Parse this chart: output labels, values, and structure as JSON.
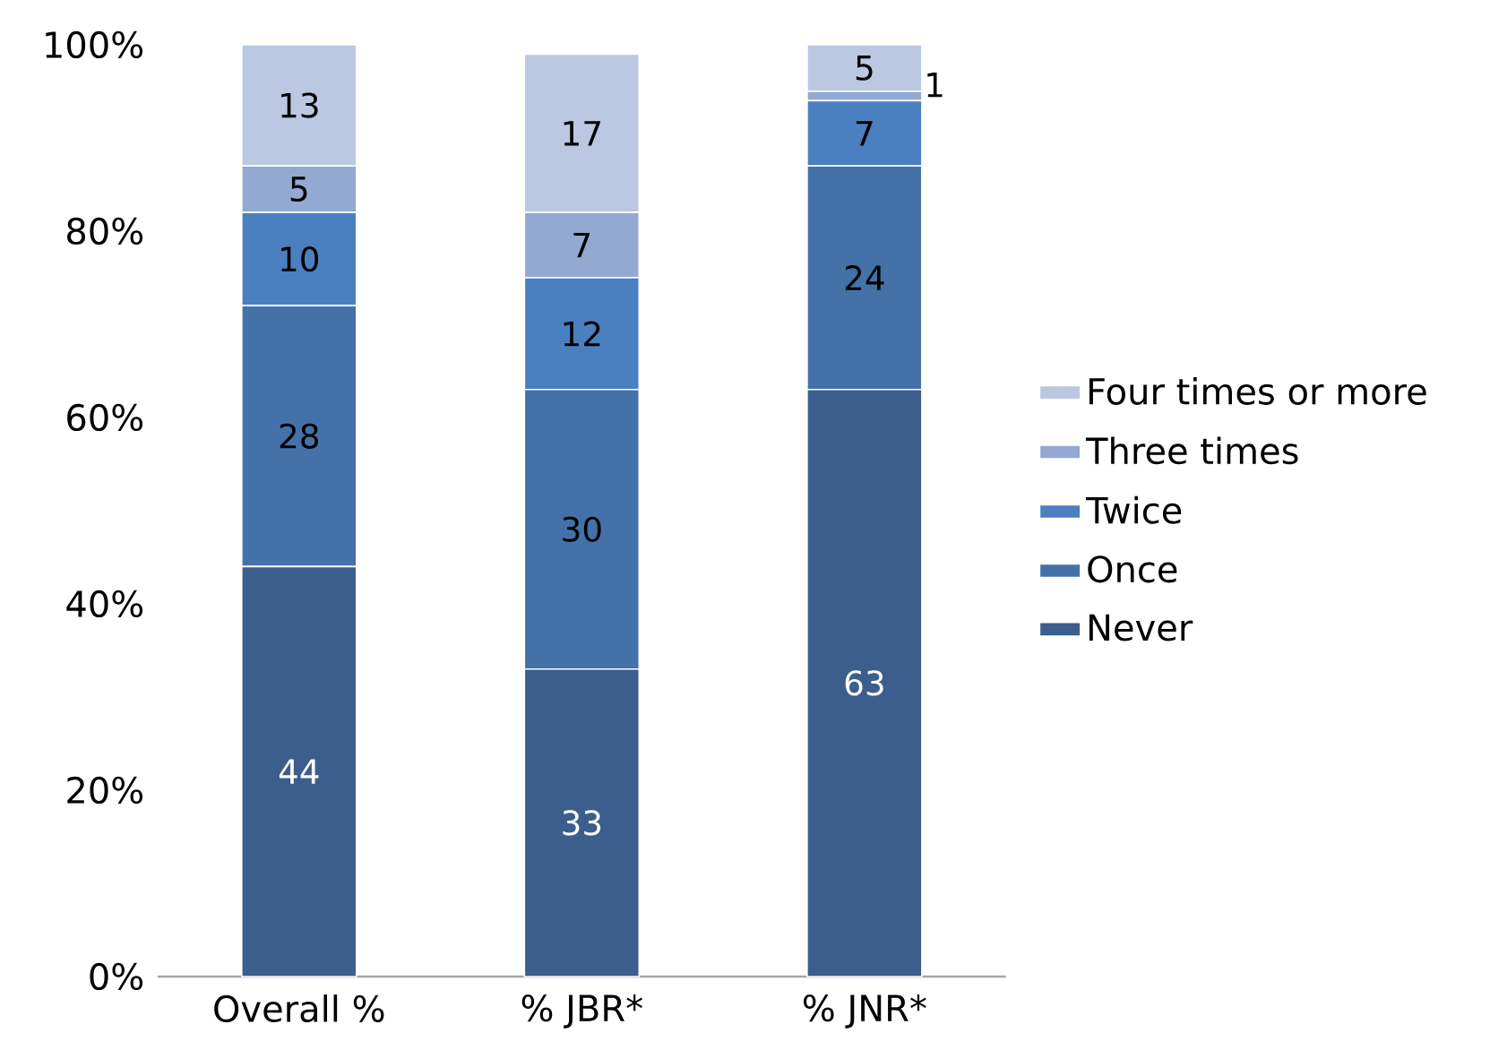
{
  "chart_data": {
    "type": "bar",
    "stacked": true,
    "data_labels": true,
    "legend": "right",
    "categories": [
      "Overall %",
      "% JBR*",
      "% JNR*"
    ],
    "series": [
      {
        "name": "Never",
        "color": "#3b5e8c",
        "values": [
          44,
          33,
          63
        ]
      },
      {
        "name": "Once",
        "color": "#4472a8",
        "values": [
          28,
          30,
          24
        ]
      },
      {
        "name": "Twice",
        "color": "#4a80c0",
        "values": [
          10,
          12,
          7
        ]
      },
      {
        "name": "Three times",
        "color": "#93a9d1",
        "values": [
          5,
          7,
          1
        ]
      },
      {
        "name": "Four times or more",
        "color": "#bac8e1",
        "values": [
          13,
          17,
          5
        ]
      }
    ],
    "ylim": [
      0,
      100
    ],
    "yticks": [
      {
        "value": 0,
        "label": "0%"
      },
      {
        "value": 20,
        "label": "20%"
      },
      {
        "value": 40,
        "label": "40%"
      },
      {
        "value": 60,
        "label": "60%"
      },
      {
        "value": 80,
        "label": "80%"
      },
      {
        "value": 100,
        "label": "100%"
      }
    ]
  }
}
